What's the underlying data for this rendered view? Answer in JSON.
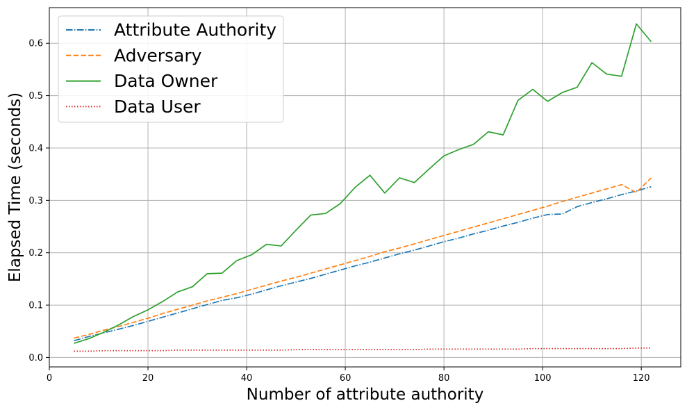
{
  "chart_data": {
    "type": "line",
    "title": "",
    "xlabel": "Number of attribute authority",
    "ylabel": "Elapsed Time (seconds)",
    "xlim": [
      0,
      128
    ],
    "ylim": [
      -0.018,
      0.668
    ],
    "xticks": [
      0,
      20,
      40,
      60,
      80,
      100,
      120
    ],
    "yticks": [
      0.0,
      0.1,
      0.2,
      0.3,
      0.4,
      0.5,
      0.6
    ],
    "grid": true,
    "legend_position": "top-left",
    "x": [
      5,
      8,
      11,
      14,
      17,
      20,
      23,
      26,
      29,
      32,
      35,
      38,
      41,
      44,
      47,
      50,
      53,
      56,
      59,
      62,
      65,
      68,
      71,
      74,
      77,
      80,
      83,
      86,
      89,
      92,
      95,
      98,
      101,
      104,
      107,
      110,
      113,
      116,
      119,
      122
    ],
    "series": [
      {
        "name": "Attribute Authority",
        "color": "#1f77b4",
        "style": "dashdot",
        "values": [
          0.032,
          0.04,
          0.047,
          0.054,
          0.061,
          0.069,
          0.077,
          0.085,
          0.093,
          0.101,
          0.109,
          0.114,
          0.121,
          0.129,
          0.137,
          0.144,
          0.151,
          0.159,
          0.167,
          0.175,
          0.182,
          0.19,
          0.198,
          0.205,
          0.213,
          0.221,
          0.228,
          0.236,
          0.243,
          0.251,
          0.258,
          0.266,
          0.273,
          0.274,
          0.288,
          0.296,
          0.303,
          0.311,
          0.318,
          0.326
        ]
      },
      {
        "name": "Adversary",
        "color": "#ff7f0e",
        "style": "dashed",
        "values": [
          0.037,
          0.044,
          0.052,
          0.059,
          0.067,
          0.075,
          0.084,
          0.092,
          0.1,
          0.108,
          0.115,
          0.122,
          0.13,
          0.138,
          0.146,
          0.153,
          0.161,
          0.169,
          0.177,
          0.185,
          0.193,
          0.202,
          0.209,
          0.217,
          0.225,
          0.233,
          0.241,
          0.249,
          0.257,
          0.265,
          0.273,
          0.281,
          0.289,
          0.298,
          0.306,
          0.314,
          0.322,
          0.33,
          0.315,
          0.343
        ]
      },
      {
        "name": "Data Owner",
        "color": "#2ca02c",
        "style": "solid",
        "values": [
          0.027,
          0.036,
          0.048,
          0.062,
          0.078,
          0.091,
          0.107,
          0.125,
          0.135,
          0.16,
          0.161,
          0.185,
          0.196,
          0.216,
          0.213,
          0.243,
          0.272,
          0.275,
          0.294,
          0.325,
          0.348,
          0.314,
          0.343,
          0.334,
          0.36,
          0.385,
          0.397,
          0.407,
          0.431,
          0.425,
          0.491,
          0.512,
          0.489,
          0.506,
          0.516,
          0.563,
          0.541,
          0.537,
          0.637,
          0.603
        ]
      },
      {
        "name": "Data User",
        "color": "#d62728",
        "style": "dotted",
        "values": [
          0.012,
          0.012,
          0.013,
          0.013,
          0.013,
          0.013,
          0.013,
          0.014,
          0.014,
          0.014,
          0.014,
          0.014,
          0.014,
          0.014,
          0.014,
          0.015,
          0.015,
          0.015,
          0.015,
          0.015,
          0.015,
          0.015,
          0.015,
          0.015,
          0.016,
          0.016,
          0.016,
          0.016,
          0.016,
          0.016,
          0.016,
          0.017,
          0.017,
          0.017,
          0.017,
          0.017,
          0.017,
          0.017,
          0.018,
          0.018
        ]
      }
    ]
  }
}
